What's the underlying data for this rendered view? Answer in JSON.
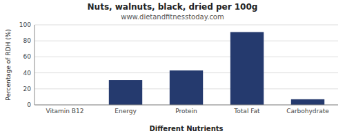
{
  "chart_data": {
    "type": "bar",
    "title": "Nuts, walnuts, black, dried per 100g",
    "subtitle": "www.dietandfitnesstoday.com",
    "xlabel": "Different Nutrients",
    "ylabel": "Percentage of RDH (%)",
    "categories": [
      "Vitamin B12",
      "Energy",
      "Protein",
      "Total Fat",
      "Carbohydrate"
    ],
    "values": [
      0,
      31,
      43,
      91,
      7
    ],
    "color": "#253a6e",
    "ylim": [
      0,
      100
    ],
    "yticks": [
      0,
      20,
      40,
      60,
      80,
      100
    ],
    "grid": true
  }
}
